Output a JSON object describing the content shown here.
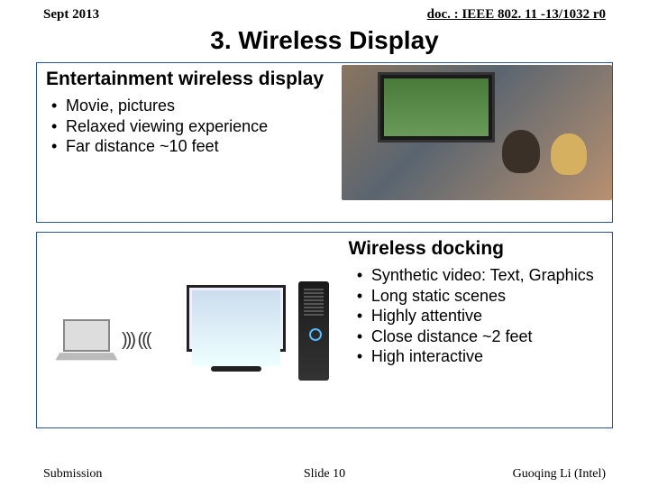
{
  "header": {
    "left": "Sept 2013",
    "right": "doc. : IEEE 802. 11 -13/1032 r0"
  },
  "title": "3. Wireless Display",
  "section1": {
    "heading": "Entertainment wireless display",
    "bullets": [
      "Movie, pictures",
      "Relaxed viewing experience",
      "Far distance ~10 feet"
    ]
  },
  "section2": {
    "heading": "Wireless docking",
    "bullets": [
      "Synthetic video: Text, Graphics",
      "Long static scenes",
      "Highly attentive",
      "Close distance ~2 feet",
      "High interactive"
    ]
  },
  "footer": {
    "left": "Submission",
    "center": "Slide 10",
    "right": "Guoqing Li (Intel)"
  },
  "colors": {
    "border": "#2a5599"
  }
}
